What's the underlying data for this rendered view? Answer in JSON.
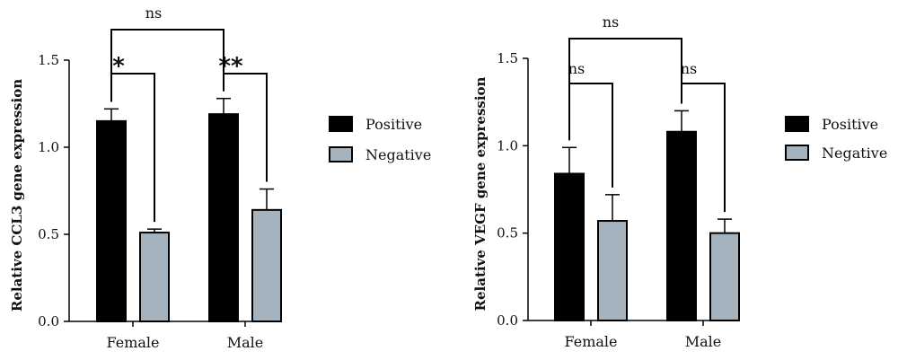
{
  "chart_data": [
    {
      "type": "bar",
      "ylabel": "Relative CCL3 gene expression",
      "ylim": [
        0,
        1.5
      ],
      "yticks": [
        "0.0",
        "0.5",
        "1.0",
        "1.5"
      ],
      "categories": [
        "Female",
        "Male"
      ],
      "series": [
        {
          "name": "Positive",
          "values": [
            1.15,
            1.19
          ],
          "errors": [
            0.07,
            0.09
          ],
          "color": "#000000"
        },
        {
          "name": "Negative",
          "values": [
            0.51,
            0.64
          ],
          "errors": [
            0.02,
            0.12
          ],
          "color": "#a5b3bf"
        }
      ],
      "legend": "right",
      "significance": [
        {
          "label": "*",
          "comparison": "Female Positive vs Female Negative"
        },
        {
          "label": "**",
          "comparison": "Male Positive vs Male Negative"
        },
        {
          "label": "ns",
          "comparison": "Female Positive vs Male Positive"
        }
      ]
    },
    {
      "type": "bar",
      "ylabel": "Relative VEGF gene expression",
      "ylim": [
        0,
        1.5
      ],
      "yticks": [
        "0.0",
        "0.5",
        "1.0",
        "1.5"
      ],
      "categories": [
        "Female",
        "Male"
      ],
      "series": [
        {
          "name": "Positive",
          "values": [
            0.84,
            1.08
          ],
          "errors": [
            0.15,
            0.12
          ],
          "color": "#000000"
        },
        {
          "name": "Negative",
          "values": [
            0.57,
            0.5
          ],
          "errors": [
            0.15,
            0.08
          ],
          "color": "#a5b3bf"
        }
      ],
      "legend": "right",
      "significance": [
        {
          "label": "ns",
          "comparison": "Female Positive vs Female Negative"
        },
        {
          "label": "ns",
          "comparison": "Male Positive vs Male Negative"
        },
        {
          "label": "ns",
          "comparison": "Female Positive vs Male Positive"
        }
      ]
    }
  ]
}
